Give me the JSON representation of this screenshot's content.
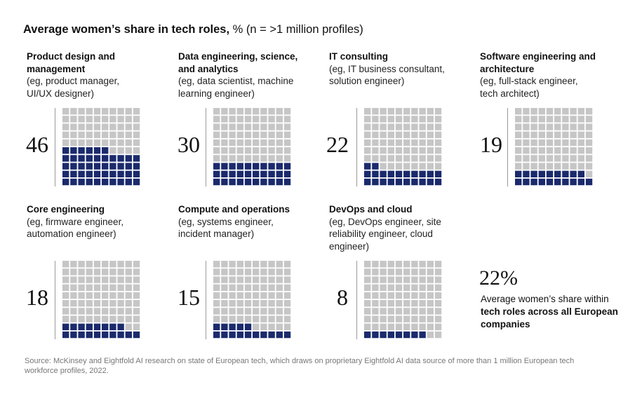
{
  "title": {
    "bold": "Average women’s share in tech roles,",
    "rest": " % (n = >1 million profiles)"
  },
  "colors": {
    "filled": "#1a2a6c",
    "empty": "#c6c6c6",
    "divider": "#9a9a9a"
  },
  "chart_data": {
    "type": "waffle",
    "grid": "10x10",
    "unit": "%",
    "categories": [
      {
        "title": "Product design and management",
        "subtitle": "(eg, product manager, UI/UX designer)",
        "value": 46
      },
      {
        "title": "Data engineering, science, and analytics",
        "subtitle": "(eg, data scientist, machine learning engineer)",
        "value": 30
      },
      {
        "title": "IT consulting",
        "subtitle": "(eg, IT business consultant, solution engineer)",
        "value": 22
      },
      {
        "title": "Software engineering and architecture",
        "subtitle": "(eg, full-stack engineer, tech architect)",
        "value": 19
      },
      {
        "title": "Core engineering",
        "subtitle": "(eg, firmware engineer, automation engineer)",
        "value": 18
      },
      {
        "title": "Compute and operations",
        "subtitle": "(eg, systems engineer, incident manager)",
        "value": 15
      },
      {
        "title": "DevOps and cloud",
        "subtitle": "(eg, DevOps engineer, site reliability engineer, cloud engineer)",
        "value": 8
      }
    ],
    "summary": {
      "value": "22%",
      "text_plain": "Average women’s share within ",
      "text_bold": "tech roles across all European companies"
    }
  },
  "source": "Source: McKinsey and Eightfold AI research on state of European tech, which draws on proprietary Eightfold AI data source of more than 1 million European tech workforce profiles, 2022."
}
